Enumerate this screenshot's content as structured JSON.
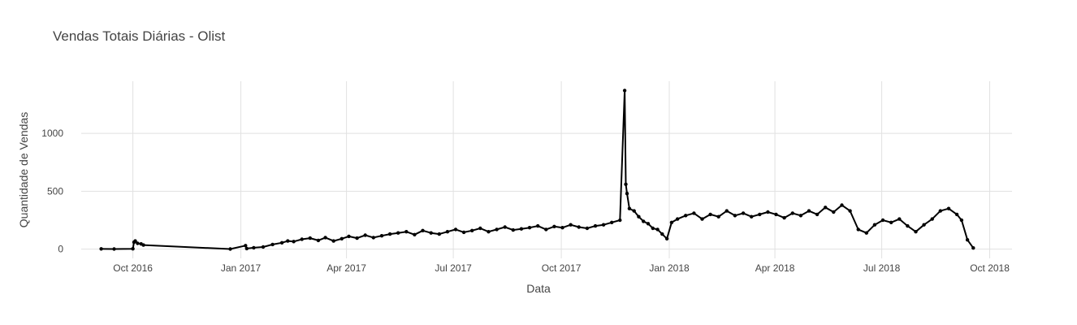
{
  "chart_data": {
    "type": "line",
    "title": "Vendas Totais Diárias - Olist",
    "xlabel": "Data",
    "ylabel": "Quantidade de Vendas",
    "x_range": [
      "2016-08-18",
      "2018-10-20"
    ],
    "ylim": [
      -80,
      1450
    ],
    "grid": true,
    "legend": "none",
    "series_color": "#000000",
    "x_ticks": [
      {
        "date": "2016-10-01",
        "label": "Oct 2016"
      },
      {
        "date": "2017-01-01",
        "label": "Jan 2017"
      },
      {
        "date": "2017-04-01",
        "label": "Apr 2017"
      },
      {
        "date": "2017-07-01",
        "label": "Jul 2017"
      },
      {
        "date": "2017-10-01",
        "label": "Oct 2017"
      },
      {
        "date": "2018-01-01",
        "label": "Jan 2018"
      },
      {
        "date": "2018-04-01",
        "label": "Apr 2018"
      },
      {
        "date": "2018-07-01",
        "label": "Jul 2018"
      },
      {
        "date": "2018-10-01",
        "label": "Oct 2018"
      }
    ],
    "y_ticks": [
      0,
      500,
      1000
    ],
    "x": [
      "2016-09-04",
      "2016-09-15",
      "2016-10-01",
      "2016-10-02",
      "2016-10-03",
      "2016-10-05",
      "2016-10-08",
      "2016-10-10",
      "2016-12-23",
      "2017-01-05",
      "2017-01-06",
      "2017-01-12",
      "2017-01-20",
      "2017-01-28",
      "2017-02-05",
      "2017-02-10",
      "2017-02-15",
      "2017-02-22",
      "2017-03-01",
      "2017-03-08",
      "2017-03-14",
      "2017-03-21",
      "2017-03-28",
      "2017-04-03",
      "2017-04-10",
      "2017-04-17",
      "2017-04-24",
      "2017-05-01",
      "2017-05-08",
      "2017-05-15",
      "2017-05-22",
      "2017-05-29",
      "2017-06-05",
      "2017-06-12",
      "2017-06-19",
      "2017-06-26",
      "2017-07-03",
      "2017-07-10",
      "2017-07-17",
      "2017-07-24",
      "2017-07-31",
      "2017-08-07",
      "2017-08-14",
      "2017-08-21",
      "2017-08-28",
      "2017-09-04",
      "2017-09-11",
      "2017-09-18",
      "2017-09-25",
      "2017-10-02",
      "2017-10-09",
      "2017-10-16",
      "2017-10-23",
      "2017-10-30",
      "2017-11-06",
      "2017-11-13",
      "2017-11-20",
      "2017-11-24",
      "2017-11-25",
      "2017-11-26",
      "2017-11-28",
      "2017-12-02",
      "2017-12-06",
      "2017-12-10",
      "2017-12-14",
      "2017-12-18",
      "2017-12-22",
      "2017-12-26",
      "2017-12-30",
      "2018-01-03",
      "2018-01-08",
      "2018-01-15",
      "2018-01-22",
      "2018-01-29",
      "2018-02-05",
      "2018-02-12",
      "2018-02-19",
      "2018-02-26",
      "2018-03-05",
      "2018-03-12",
      "2018-03-19",
      "2018-03-26",
      "2018-04-02",
      "2018-04-09",
      "2018-04-16",
      "2018-04-23",
      "2018-04-30",
      "2018-05-07",
      "2018-05-14",
      "2018-05-21",
      "2018-05-28",
      "2018-06-04",
      "2018-06-11",
      "2018-06-18",
      "2018-06-25",
      "2018-07-02",
      "2018-07-09",
      "2018-07-16",
      "2018-07-23",
      "2018-07-30",
      "2018-08-06",
      "2018-08-13",
      "2018-08-20",
      "2018-08-27",
      "2018-09-03",
      "2018-09-07",
      "2018-09-12",
      "2018-09-17"
    ],
    "values": [
      2,
      1,
      3,
      60,
      70,
      50,
      45,
      35,
      1,
      30,
      5,
      12,
      18,
      40,
      55,
      70,
      65,
      85,
      95,
      75,
      100,
      70,
      90,
      110,
      95,
      120,
      100,
      115,
      130,
      140,
      150,
      125,
      160,
      140,
      130,
      150,
      170,
      145,
      160,
      180,
      150,
      170,
      190,
      165,
      175,
      185,
      200,
      170,
      195,
      185,
      210,
      190,
      180,
      200,
      210,
      230,
      250,
      1370,
      560,
      480,
      350,
      330,
      280,
      240,
      220,
      180,
      170,
      130,
      90,
      230,
      260,
      290,
      310,
      260,
      300,
      280,
      330,
      290,
      310,
      280,
      300,
      320,
      300,
      270,
      310,
      290,
      330,
      300,
      360,
      320,
      380,
      330,
      170,
      140,
      210,
      250,
      230,
      260,
      200,
      150,
      210,
      260,
      330,
      350,
      300,
      250,
      80,
      10
    ]
  }
}
